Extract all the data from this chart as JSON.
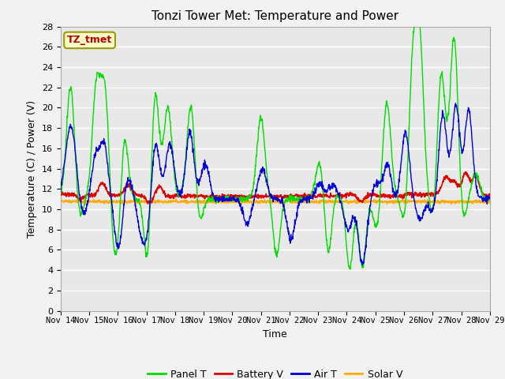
{
  "title": "Tonzi Tower Met: Temperature and Power",
  "xlabel": "Time",
  "ylabel": "Temperature (C) / Power (V)",
  "ylim": [
    0,
    28
  ],
  "yticks": [
    0,
    2,
    4,
    6,
    8,
    10,
    12,
    14,
    16,
    18,
    20,
    22,
    24,
    26,
    28
  ],
  "xtick_labels": [
    "Nov 14",
    "Nov 15",
    "Nov 16",
    "Nov 17",
    "Nov 18",
    "Nov 19",
    "Nov 20",
    "Nov 21",
    "Nov 22",
    "Nov 23",
    "Nov 24",
    "Nov 25",
    "Nov 26",
    "Nov 27",
    "Nov 28",
    "Nov 29"
  ],
  "colors": {
    "panel_t": "#00dd00",
    "battery_v": "#dd0000",
    "air_t": "#0000dd",
    "solar_v": "#ffaa00"
  },
  "legend_labels": [
    "Panel T",
    "Battery V",
    "Air T",
    "Solar V"
  ],
  "annotation_text": "TZ_tmet",
  "annotation_color": "#bb0000",
  "annotation_bg": "#ffffcc",
  "annotation_edge": "#999900",
  "fig_bg": "#f2f2f2",
  "ax_bg": "#e8e8e8",
  "grid_color": "#ffffff",
  "n_days": 15,
  "points_per_day": 96
}
